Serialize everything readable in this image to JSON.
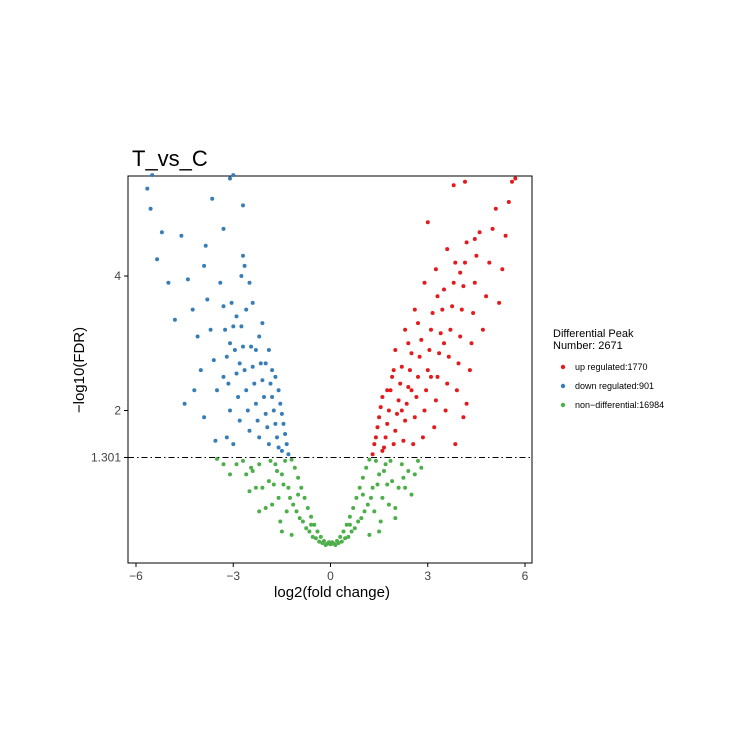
{
  "chart_data": {
    "type": "scatter",
    "title": "T_vs_C",
    "xlabel": "log2(fold change)",
    "ylabel": "−log10(FDR)",
    "xlim": [
      -6,
      6
    ],
    "ylim": [
      0,
      5.5
    ],
    "x_ticks": [
      -6,
      -3,
      0,
      3,
      6
    ],
    "x_tick_labels": [
      "−6",
      "−3",
      "0",
      "3",
      "6"
    ],
    "y_ticks": [
      2,
      4
    ],
    "y_tick_labels": [
      "2",
      "4"
    ],
    "threshold_line": {
      "value": 1.301,
      "label": "1.301",
      "style": "dot-dash"
    },
    "grid": false,
    "legend": {
      "position": "right",
      "title_line1": "Differential Peak",
      "title_line2": "Number: 2671",
      "entries": [
        {
          "label": "up regulated:1770",
          "color": "#e41a1c"
        },
        {
          "label": "down regulated:901",
          "color": "#377eb8"
        },
        {
          "label": "non−differential:16984",
          "color": "#4daf4a"
        }
      ]
    },
    "series": [
      {
        "name": "up regulated:1770",
        "color": "#e41a1c",
        "points": [
          [
            1.3,
            1.35
          ],
          [
            1.35,
            1.5
          ],
          [
            1.4,
            1.6
          ],
          [
            1.45,
            1.75
          ],
          [
            1.5,
            1.9
          ],
          [
            1.55,
            2.05
          ],
          [
            1.6,
            2.2
          ],
          [
            1.65,
            1.45
          ],
          [
            1.7,
            1.6
          ],
          [
            1.75,
            1.8
          ],
          [
            1.8,
            2.0
          ],
          [
            1.85,
            2.3
          ],
          [
            1.9,
            2.5
          ],
          [
            1.95,
            1.5
          ],
          [
            2.0,
            1.7
          ],
          [
            2.05,
            1.95
          ],
          [
            2.1,
            2.15
          ],
          [
            2.15,
            2.4
          ],
          [
            2.2,
            2.65
          ],
          [
            2.25,
            1.55
          ],
          [
            2.3,
            1.85
          ],
          [
            2.35,
            2.1
          ],
          [
            2.4,
            2.35
          ],
          [
            2.45,
            2.6
          ],
          [
            2.5,
            2.85
          ],
          [
            2.55,
            1.5
          ],
          [
            2.6,
            1.9
          ],
          [
            2.65,
            2.2
          ],
          [
            2.7,
            2.5
          ],
          [
            2.75,
            2.8
          ],
          [
            2.8,
            3.05
          ],
          [
            2.85,
            1.6
          ],
          [
            2.9,
            2.0
          ],
          [
            2.95,
            2.3
          ],
          [
            3.0,
            2.6
          ],
          [
            3.05,
            2.9
          ],
          [
            3.1,
            3.2
          ],
          [
            3.15,
            3.45
          ],
          [
            3.2,
            1.75
          ],
          [
            3.25,
            2.15
          ],
          [
            3.3,
            2.5
          ],
          [
            3.35,
            2.85
          ],
          [
            3.4,
            3.15
          ],
          [
            3.45,
            3.5
          ],
          [
            3.5,
            3.8
          ],
          [
            3.55,
            2.0
          ],
          [
            3.6,
            2.4
          ],
          [
            3.65,
            2.8
          ],
          [
            3.7,
            3.2
          ],
          [
            3.75,
            3.55
          ],
          [
            3.8,
            3.9
          ],
          [
            3.85,
            4.2
          ],
          [
            3.9,
            2.3
          ],
          [
            3.95,
            2.7
          ],
          [
            4.0,
            3.1
          ],
          [
            4.05,
            3.5
          ],
          [
            4.1,
            3.85
          ],
          [
            4.15,
            4.2
          ],
          [
            4.2,
            4.5
          ],
          [
            4.3,
            2.6
          ],
          [
            4.35,
            3.0
          ],
          [
            4.4,
            3.45
          ],
          [
            4.45,
            3.9
          ],
          [
            4.5,
            4.3
          ],
          [
            4.6,
            4.65
          ],
          [
            4.7,
            3.2
          ],
          [
            4.8,
            3.7
          ],
          [
            4.9,
            4.2
          ],
          [
            5.0,
            4.7
          ],
          [
            5.1,
            5.0
          ],
          [
            5.2,
            3.6
          ],
          [
            5.3,
            4.1
          ],
          [
            5.4,
            4.6
          ],
          [
            5.5,
            5.1
          ],
          [
            5.6,
            5.4
          ],
          [
            5.7,
            5.45
          ],
          [
            3.0,
            4.8
          ],
          [
            4.15,
            5.4
          ],
          [
            3.8,
            5.35
          ],
          [
            4.2,
            2.1
          ],
          [
            4.1,
            1.9
          ],
          [
            3.85,
            1.5
          ],
          [
            2.0,
            2.9
          ],
          [
            2.3,
            3.2
          ],
          [
            2.6,
            3.5
          ],
          [
            2.2,
            2.0
          ],
          [
            1.6,
            1.4
          ],
          [
            1.75,
            2.3
          ],
          [
            2.5,
            2.3
          ],
          [
            3.3,
            3.7
          ],
          [
            3.6,
            4.4
          ],
          [
            2.9,
            3.9
          ],
          [
            2.7,
            3.3
          ],
          [
            1.95,
            2.6
          ],
          [
            2.4,
            3.0
          ],
          [
            3.1,
            2.5
          ],
          [
            3.5,
            3.0
          ],
          [
            4.0,
            4.05
          ],
          [
            4.45,
            4.55
          ],
          [
            3.25,
            4.1
          ]
        ]
      },
      {
        "name": "down regulated:901",
        "color": "#377eb8",
        "points": [
          [
            -1.3,
            1.35
          ],
          [
            -1.35,
            1.5
          ],
          [
            -1.4,
            1.65
          ],
          [
            -1.45,
            1.8
          ],
          [
            -1.5,
            1.95
          ],
          [
            -1.55,
            2.1
          ],
          [
            -1.6,
            1.45
          ],
          [
            -1.65,
            1.6
          ],
          [
            -1.7,
            1.8
          ],
          [
            -1.75,
            2.0
          ],
          [
            -1.8,
            2.2
          ],
          [
            -1.85,
            2.4
          ],
          [
            -1.9,
            1.5
          ],
          [
            -1.95,
            1.75
          ],
          [
            -2.0,
            1.95
          ],
          [
            -2.05,
            2.2
          ],
          [
            -2.1,
            2.45
          ],
          [
            -2.15,
            2.7
          ],
          [
            -2.2,
            1.6
          ],
          [
            -2.25,
            1.85
          ],
          [
            -2.3,
            2.1
          ],
          [
            -2.35,
            2.4
          ],
          [
            -2.4,
            2.65
          ],
          [
            -2.45,
            2.95
          ],
          [
            -2.5,
            1.7
          ],
          [
            -2.55,
            2.0
          ],
          [
            -2.6,
            2.3
          ],
          [
            -2.65,
            2.6
          ],
          [
            -2.7,
            2.95
          ],
          [
            -2.75,
            3.25
          ],
          [
            -2.8,
            1.85
          ],
          [
            -2.85,
            2.2
          ],
          [
            -2.9,
            2.55
          ],
          [
            -2.95,
            2.9
          ],
          [
            -3.0,
            3.25
          ],
          [
            -3.05,
            3.6
          ],
          [
            -3.1,
            2.0
          ],
          [
            -3.15,
            2.4
          ],
          [
            -3.2,
            2.8
          ],
          [
            -3.25,
            3.2
          ],
          [
            -3.3,
            3.55
          ],
          [
            -3.4,
            3.9
          ],
          [
            -3.5,
            2.3
          ],
          [
            -3.6,
            2.75
          ],
          [
            -3.7,
            3.2
          ],
          [
            -3.8,
            3.65
          ],
          [
            -3.9,
            4.15
          ],
          [
            -4.0,
            2.6
          ],
          [
            -4.1,
            3.1
          ],
          [
            -4.25,
            3.5
          ],
          [
            -4.4,
            3.95
          ],
          [
            -4.6,
            4.6
          ],
          [
            -4.8,
            3.35
          ],
          [
            -5.0,
            3.9
          ],
          [
            -5.2,
            4.65
          ],
          [
            -5.35,
            4.25
          ],
          [
            -5.55,
            5.0
          ],
          [
            -5.65,
            5.3
          ],
          [
            -5.5,
            5.5
          ],
          [
            -3.0,
            5.5
          ],
          [
            -3.1,
            5.45
          ],
          [
            -2.7,
            5.05
          ],
          [
            -3.65,
            5.15
          ],
          [
            -3.85,
            4.45
          ],
          [
            -3.3,
            4.7
          ],
          [
            -2.7,
            4.3
          ],
          [
            -2.65,
            4.15
          ],
          [
            -3.0,
            1.5
          ],
          [
            -3.2,
            1.6
          ],
          [
            -2.75,
            4.0
          ],
          [
            -2.4,
            3.6
          ],
          [
            -2.2,
            3.1
          ],
          [
            -2.0,
            2.7
          ],
          [
            -1.8,
            2.6
          ],
          [
            -2.3,
            2.9
          ],
          [
            -2.6,
            3.5
          ],
          [
            -2.9,
            3.4
          ],
          [
            -3.3,
            2.5
          ],
          [
            -1.6,
            2.3
          ],
          [
            -1.5,
            1.4
          ],
          [
            -3.55,
            1.55
          ],
          [
            -4.5,
            2.1
          ],
          [
            -4.2,
            2.3
          ],
          [
            -3.9,
            1.9
          ],
          [
            -2.5,
            3.9
          ],
          [
            -2.1,
            3.3
          ],
          [
            -1.9,
            2.9
          ],
          [
            -1.7,
            2.5
          ],
          [
            -3.1,
            3.0
          ],
          [
            -2.8,
            2.7
          ]
        ]
      },
      {
        "name": "non−differential:16984",
        "color": "#4daf4a",
        "points": [
          [
            0,
            0.01
          ],
          [
            0.1,
            0.02
          ],
          [
            -0.1,
            0.02
          ],
          [
            0.2,
            0.06
          ],
          [
            -0.2,
            0.06
          ],
          [
            0.3,
            0.12
          ],
          [
            -0.3,
            0.12
          ],
          [
            0.4,
            0.2
          ],
          [
            -0.4,
            0.2
          ],
          [
            0.5,
            0.3
          ],
          [
            -0.5,
            0.3
          ],
          [
            0.6,
            0.42
          ],
          [
            -0.6,
            0.42
          ],
          [
            0.7,
            0.55
          ],
          [
            -0.7,
            0.55
          ],
          [
            0.8,
            0.7
          ],
          [
            -0.8,
            0.7
          ],
          [
            0.9,
            0.85
          ],
          [
            -0.9,
            0.85
          ],
          [
            1.0,
            1.0
          ],
          [
            -1.0,
            1.0
          ],
          [
            1.1,
            1.15
          ],
          [
            -1.1,
            1.15
          ],
          [
            1.2,
            1.27
          ],
          [
            -1.2,
            1.27
          ],
          [
            0.25,
            0.03
          ],
          [
            -0.25,
            0.03
          ],
          [
            0.45,
            0.1
          ],
          [
            -0.45,
            0.1
          ],
          [
            0.65,
            0.2
          ],
          [
            -0.65,
            0.2
          ],
          [
            0.85,
            0.35
          ],
          [
            -0.85,
            0.35
          ],
          [
            1.05,
            0.5
          ],
          [
            -1.05,
            0.5
          ],
          [
            1.25,
            0.7
          ],
          [
            -1.25,
            0.7
          ],
          [
            1.45,
            0.9
          ],
          [
            -1.45,
            0.9
          ],
          [
            1.65,
            1.1
          ],
          [
            -1.65,
            1.1
          ],
          [
            1.85,
            1.25
          ],
          [
            -1.85,
            1.25
          ],
          [
            1.35,
            0.5
          ],
          [
            -1.35,
            0.5
          ],
          [
            1.6,
            0.7
          ],
          [
            -1.6,
            0.7
          ],
          [
            1.9,
            0.95
          ],
          [
            -1.9,
            0.95
          ],
          [
            2.2,
            1.2
          ],
          [
            -2.2,
            1.2
          ],
          [
            1.55,
            0.35
          ],
          [
            -1.55,
            0.35
          ],
          [
            1.8,
            0.6
          ],
          [
            -1.8,
            0.6
          ],
          [
            2.1,
            0.85
          ],
          [
            -2.1,
            0.85
          ],
          [
            2.4,
            1.1
          ],
          [
            -2.4,
            1.1
          ],
          [
            2.7,
            1.25
          ],
          [
            -2.7,
            1.25
          ],
          [
            2.0,
            0.55
          ],
          [
            -2.0,
            0.55
          ],
          [
            2.3,
            0.85
          ],
          [
            -2.3,
            0.85
          ],
          [
            2.6,
            1.05
          ],
          [
            -2.6,
            1.05
          ],
          [
            -2.9,
            1.2
          ],
          [
            -3.1,
            1.05
          ],
          [
            -3.3,
            1.2
          ],
          [
            -3.5,
            1.28
          ],
          [
            -2.5,
            0.8
          ],
          [
            -2.2,
            0.5
          ],
          [
            -1.5,
            0.2
          ],
          [
            1.5,
            0.2
          ],
          [
            2.0,
            0.4
          ],
          [
            2.5,
            0.75
          ],
          [
            -1.2,
            0.15
          ],
          [
            1.2,
            0.15
          ],
          [
            0.15,
            0.0
          ],
          [
            -0.15,
            0.0
          ],
          [
            0.35,
            0.05
          ],
          [
            -0.35,
            0.05
          ],
          [
            0.55,
            0.12
          ],
          [
            -0.55,
            0.12
          ],
          [
            0.75,
            0.25
          ],
          [
            -0.75,
            0.25
          ],
          [
            0.95,
            0.4
          ],
          [
            -0.95,
            0.4
          ],
          [
            1.15,
            0.6
          ],
          [
            -1.15,
            0.6
          ],
          [
            1.3,
            0.85
          ],
          [
            -1.3,
            0.85
          ],
          [
            1.5,
            1.05
          ],
          [
            -1.5,
            1.05
          ],
          [
            1.7,
            1.2
          ],
          [
            -1.7,
            1.2
          ],
          [
            1.4,
            1.25
          ],
          [
            -1.4,
            1.25
          ],
          [
            2.8,
            1.15
          ],
          [
            0.05,
            0.04
          ],
          [
            -0.05,
            0.04
          ],
          [
            0.6,
            0.3
          ],
          [
            -0.6,
            0.3
          ],
          [
            1.0,
            0.75
          ],
          [
            -1.0,
            0.75
          ],
          [
            1.75,
            0.9
          ],
          [
            -1.75,
            0.9
          ],
          [
            2.25,
            1.0
          ],
          [
            -2.45,
            1.15
          ]
        ]
      }
    ]
  }
}
